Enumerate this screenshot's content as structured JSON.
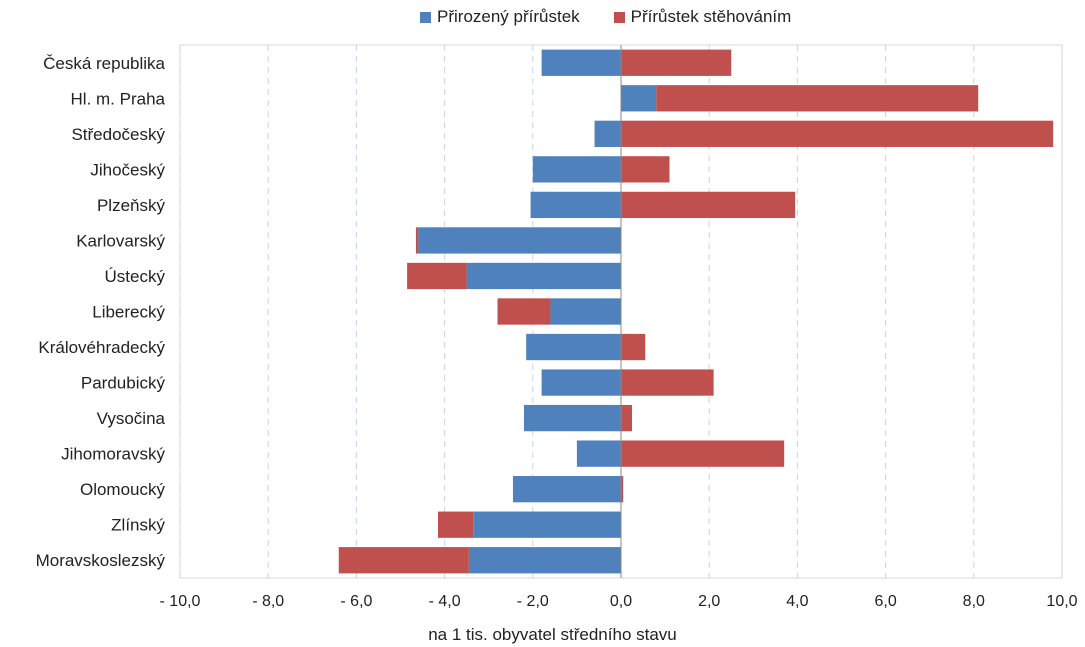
{
  "chart_data": {
    "type": "bar",
    "orientation": "horizontal",
    "stacked": true,
    "categories": [
      "Česká republika",
      "Hl. m. Praha",
      "Středočeský",
      "Jihočeský",
      "Plzeňský",
      "Karlovarský",
      "Ústecký",
      "Liberecký",
      "Královéhradecký",
      "Pardubický",
      "Vysočina",
      "Jihomoravský",
      "Olomoucký",
      "Zlínský",
      "Moravskoslezský"
    ],
    "series": [
      {
        "name": "Přirozený přírůstek",
        "color": "#4f81bd",
        "values": [
          -1.8,
          0.8,
          -0.6,
          -2.0,
          -2.05,
          -4.6,
          -3.5,
          -1.6,
          -2.15,
          -1.8,
          -2.2,
          -1.0,
          -2.45,
          -3.35,
          -3.45
        ]
      },
      {
        "name": "Přírůstek stěhováním",
        "color": "#c0504d",
        "values": [
          2.5,
          7.3,
          9.8,
          1.1,
          3.95,
          -0.05,
          -1.35,
          -1.2,
          0.55,
          2.1,
          0.25,
          3.7,
          0.05,
          -0.8,
          -2.95
        ]
      }
    ],
    "xlabel": "na 1 tis. obyvatel středního stavu",
    "xlim": [
      -10,
      10
    ],
    "xticks": [
      -10,
      -8,
      -6,
      -4,
      -2,
      0,
      2,
      4,
      6,
      8,
      10
    ],
    "xtick_labels": [
      "- 10,0",
      "- 8,0",
      "- 6,0",
      "- 4,0",
      "- 2,0",
      "0,0",
      "2,0",
      "4,0",
      "6,0",
      "8,0",
      "10,0"
    ],
    "grid": "vertical dashed",
    "legend_position": "top"
  }
}
